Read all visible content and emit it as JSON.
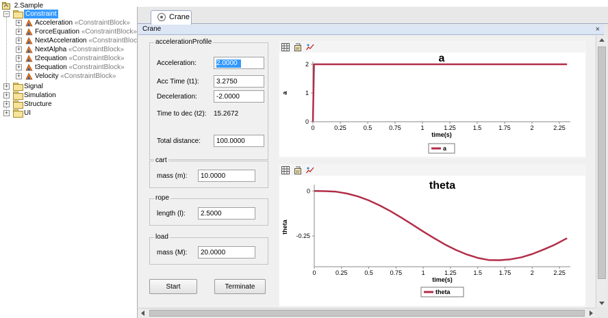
{
  "tree": {
    "root": "2.Sample",
    "constraint": "Constraint",
    "blocks": [
      {
        "name": "Acceleration",
        "stereotype": "«ConstraintBlock»"
      },
      {
        "name": "ForceEquation",
        "stereotype": "«ConstraintBlock»"
      },
      {
        "name": "NextAcceleration",
        "stereotype": "«ConstraintBlock»"
      },
      {
        "name": "NextAlpha",
        "stereotype": "«ConstraintBlock»"
      },
      {
        "name": "t2equation",
        "stereotype": "«ConstraintBlock»"
      },
      {
        "name": "t3equation",
        "stereotype": "«ConstraintBlock»"
      },
      {
        "name": "Velocity",
        "stereotype": "«ConstraintBlock»"
      }
    ],
    "folders": [
      "Signal",
      "Simulation",
      "Structure",
      "UI"
    ]
  },
  "tab": {
    "label": "Crane"
  },
  "window": {
    "title": "Crane",
    "close": "×"
  },
  "acceleration_profile": {
    "title": "accelerationProfile",
    "acceleration_label": "Acceleration:",
    "acceleration_value": "2.0000",
    "acc_time_label": "Acc Time (t1):",
    "acc_time_value": "3.2750",
    "deceleration_label": "Deceleration:",
    "deceleration_value": "-2.0000",
    "time_to_dec_label": "Time to dec (t2):",
    "time_to_dec_value": "15.2672",
    "total_distance_label": "Total distance:",
    "total_distance_value": "100.0000"
  },
  "cart": {
    "title": "cart",
    "mass_label": "mass (m):",
    "mass_value": "10.0000"
  },
  "rope": {
    "title": "rope",
    "length_label": "length (l):",
    "length_value": "2.5000"
  },
  "load": {
    "title": "load",
    "mass_label": "mass (M):",
    "mass_value": "20.0000"
  },
  "buttons": {
    "start": "Start",
    "terminate": "Terminate"
  },
  "colors": {
    "series": "#b22d48",
    "selection": "#3399ff"
  },
  "chart_data": [
    {
      "type": "line",
      "title": "a",
      "xlabel": "time(s)",
      "ylabel": "a",
      "xlim": [
        0,
        2.35
      ],
      "ylim": [
        0,
        2
      ],
      "xticks": [
        "0",
        "0.25",
        "0.5",
        "0.75",
        "1",
        "1.25",
        "1.5",
        "1.75",
        "2",
        "2.25"
      ],
      "yticks": [
        "0",
        "1",
        "2"
      ],
      "legend": "bottom-center",
      "series": [
        {
          "name": "a",
          "x": [
            0,
            0.01,
            0.5,
            1.0,
            1.5,
            2.0,
            2.32
          ],
          "y": [
            0,
            2,
            2,
            2,
            2,
            2,
            2
          ]
        }
      ]
    },
    {
      "type": "line",
      "title": "theta",
      "xlabel": "time(s)",
      "ylabel": "theta",
      "xlim": [
        0,
        2.35
      ],
      "ylim": [
        -0.42,
        0.02
      ],
      "xticks": [
        "0",
        "0.25",
        "0.5",
        "0.75",
        "1",
        "1.25",
        "1.5",
        "1.75",
        "2",
        "2.25"
      ],
      "yticks": [
        "0",
        "-0.25"
      ],
      "legend": "bottom-center",
      "series": [
        {
          "name": "theta",
          "x": [
            0,
            0.1,
            0.2,
            0.3,
            0.4,
            0.5,
            0.6,
            0.7,
            0.8,
            0.9,
            1.0,
            1.1,
            1.2,
            1.3,
            1.4,
            1.5,
            1.6,
            1.7,
            1.8,
            1.9,
            2.0,
            2.1,
            2.2,
            2.32
          ],
          "y": [
            0,
            -0.001,
            -0.004,
            -0.014,
            -0.03,
            -0.052,
            -0.08,
            -0.112,
            -0.148,
            -0.186,
            -0.225,
            -0.262,
            -0.297,
            -0.327,
            -0.352,
            -0.371,
            -0.383,
            -0.384,
            -0.379,
            -0.368,
            -0.35,
            -0.326,
            -0.3,
            -0.262
          ]
        }
      ]
    }
  ]
}
